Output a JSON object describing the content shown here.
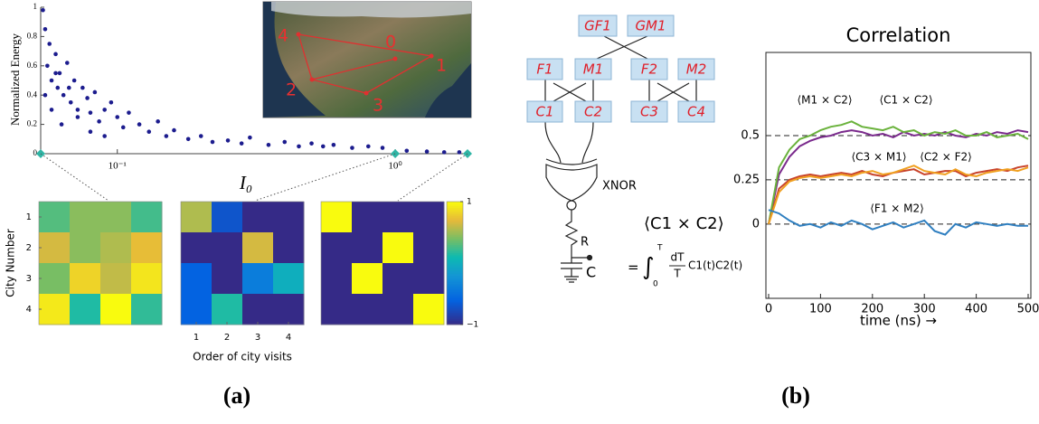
{
  "chart_data": [
    {
      "type": "scatter",
      "y_label": "Normalized Energy",
      "x_label": "I₀",
      "log_x": true,
      "xlim": [
        0.053,
        1.82
      ],
      "ylim": [
        0,
        1
      ],
      "xticks": [
        {
          "value": 0.1,
          "label": "10⁻¹"
        },
        {
          "value": 1,
          "label": "10⁰"
        }
      ],
      "yticks": [
        0,
        0.2,
        0.4,
        0.6,
        0.8,
        1
      ],
      "series": [
        {
          "color": "#1c1c8e",
          "marker": "circle",
          "x": [
            0.054,
            0.055,
            0.056,
            0.057,
            0.058,
            0.06,
            0.061,
            0.062,
            0.064,
            0.066,
            0.068,
            0.07,
            0.072,
            0.075,
            0.078,
            0.08,
            0.083,
            0.086,
            0.09,
            0.095,
            0.1,
            0.105,
            0.11,
            0.12,
            0.13,
            0.14,
            0.15,
            0.16,
            0.18,
            0.2,
            0.22,
            0.25,
            0.28,
            0.3,
            0.35,
            0.4,
            0.45,
            0.5,
            0.55,
            0.6,
            0.7,
            0.8,
            0.9,
            1.1,
            1.3,
            1.5,
            1.7,
            0.055,
            0.058,
            0.06,
            0.063,
            0.067,
            0.072,
            0.08,
            0.09
          ],
          "values": [
            0.98,
            0.85,
            0.6,
            0.75,
            0.5,
            0.68,
            0.45,
            0.55,
            0.4,
            0.62,
            0.35,
            0.5,
            0.3,
            0.45,
            0.38,
            0.28,
            0.42,
            0.22,
            0.3,
            0.35,
            0.25,
            0.18,
            0.28,
            0.2,
            0.15,
            0.22,
            0.12,
            0.16,
            0.1,
            0.12,
            0.08,
            0.09,
            0.07,
            0.11,
            0.06,
            0.08,
            0.05,
            0.07,
            0.05,
            0.06,
            0.04,
            0.05,
            0.04,
            0.02,
            0.015,
            0.01,
            0.01,
            0.4,
            0.3,
            0.55,
            0.2,
            0.45,
            0.25,
            0.15,
            0.12
          ]
        },
        {
          "color": "#2fb5a5",
          "marker": "diamond",
          "x": [
            0.053,
            1,
            1.82
          ],
          "values": [
            0,
            0,
            0
          ]
        }
      ]
    },
    {
      "type": "heatmap",
      "y_label": "City Number",
      "x_label": "Order of city visits",
      "row_labels": [
        1,
        2,
        3,
        4
      ],
      "col_labels": [
        1,
        2,
        3,
        4
      ],
      "zlim": [
        -1,
        1
      ],
      "colorbar_ticks": [
        1,
        {
          "value": -1,
          "label": "−1"
        }
      ],
      "panels": [
        [
          [
            0.3,
            0.45,
            0.45,
            0.25
          ],
          [
            0.65,
            0.45,
            0.55,
            0.72
          ],
          [
            0.4,
            0.82,
            0.6,
            0.9
          ],
          [
            0.92,
            0.15,
            1,
            0.2
          ]
        ],
        [
          [
            0.55,
            -0.7,
            -1,
            -1
          ],
          [
            -1,
            -1,
            0.65,
            -1
          ],
          [
            -0.6,
            -1,
            -0.4,
            0
          ],
          [
            -0.6,
            0.15,
            -1,
            -1
          ]
        ],
        [
          [
            1,
            -1,
            -1,
            -1
          ],
          [
            -1,
            -1,
            1,
            -1
          ],
          [
            -1,
            1,
            -1,
            -1
          ],
          [
            -1,
            -1,
            -1,
            1
          ]
        ]
      ]
    },
    {
      "type": "line",
      "title": "Correlation",
      "x_label": "time (ns) →",
      "xlim": [
        0,
        500
      ],
      "ylim": [
        -0.42,
        0.97
      ],
      "xticks": [
        0,
        100,
        200,
        300,
        400,
        500
      ],
      "yticks": [
        0,
        0.25,
        0.5
      ],
      "grid": "dashed",
      "x": [
        0,
        20,
        40,
        60,
        80,
        100,
        120,
        140,
        160,
        180,
        200,
        220,
        240,
        260,
        280,
        300,
        320,
        340,
        360,
        380,
        400,
        420,
        440,
        460,
        480,
        500
      ],
      "series": [
        {
          "name": "⟨M1 × C2⟩",
          "color": "#7a2a8c",
          "values": [
            0,
            0.28,
            0.38,
            0.44,
            0.47,
            0.49,
            0.5,
            0.52,
            0.53,
            0.52,
            0.5,
            0.51,
            0.49,
            0.52,
            0.5,
            0.51,
            0.5,
            0.52,
            0.5,
            0.49,
            0.51,
            0.5,
            0.52,
            0.51,
            0.53,
            0.52
          ]
        },
        {
          "name": "⟨C1 × C2⟩",
          "color": "#6ab23c",
          "values": [
            0,
            0.32,
            0.42,
            0.48,
            0.5,
            0.53,
            0.55,
            0.56,
            0.58,
            0.55,
            0.54,
            0.53,
            0.55,
            0.52,
            0.53,
            0.5,
            0.52,
            0.51,
            0.53,
            0.5,
            0.5,
            0.52,
            0.49,
            0.5,
            0.51,
            0.48
          ]
        },
        {
          "name": "⟨C3 × M1⟩",
          "color": "#c8432b",
          "values": [
            0,
            0.2,
            0.25,
            0.27,
            0.28,
            0.27,
            0.28,
            0.29,
            0.28,
            0.3,
            0.28,
            0.27,
            0.29,
            0.3,
            0.31,
            0.28,
            0.29,
            0.3,
            0.3,
            0.27,
            0.29,
            0.3,
            0.31,
            0.3,
            0.32,
            0.33
          ]
        },
        {
          "name": "⟨C2 × F2⟩",
          "color": "#f0a020",
          "values": [
            0,
            0.18,
            0.24,
            0.26,
            0.27,
            0.26,
            0.27,
            0.28,
            0.27,
            0.29,
            0.3,
            0.28,
            0.29,
            0.31,
            0.33,
            0.3,
            0.29,
            0.28,
            0.31,
            0.28,
            0.27,
            0.29,
            0.3,
            0.31,
            0.3,
            0.32
          ]
        },
        {
          "name": "⟨F1 × M2⟩",
          "color": "#2f7fc0",
          "values": [
            0.08,
            0.06,
            0.02,
            -0.01,
            0,
            -0.02,
            0.01,
            -0.01,
            0.02,
            0,
            -0.03,
            -0.01,
            0.01,
            -0.02,
            0,
            0.02,
            -0.04,
            -0.06,
            0,
            -0.02,
            0.01,
            0,
            -0.01,
            0,
            -0.01,
            -0.01
          ]
        }
      ]
    }
  ],
  "map": {
    "labels": [
      "0",
      "1",
      "2",
      "3",
      "4"
    ]
  },
  "diagram": {
    "nodes": [
      "GF1",
      "GM1",
      "F1",
      "M1",
      "F2",
      "M2",
      "C1",
      "C2",
      "C3",
      "C4"
    ],
    "gate": "XNOR",
    "resistor": "R",
    "capacitor": "C",
    "formula": {
      "lhs": "⟨C1 × C2⟩",
      "equals": "=",
      "integral": "∫",
      "upper": "T",
      "lower": "0",
      "numerator": "dT",
      "denominator": "T",
      "integrand": "C1(t)C2(t)"
    }
  },
  "figure_labels": [
    "(a)",
    "(b)"
  ]
}
